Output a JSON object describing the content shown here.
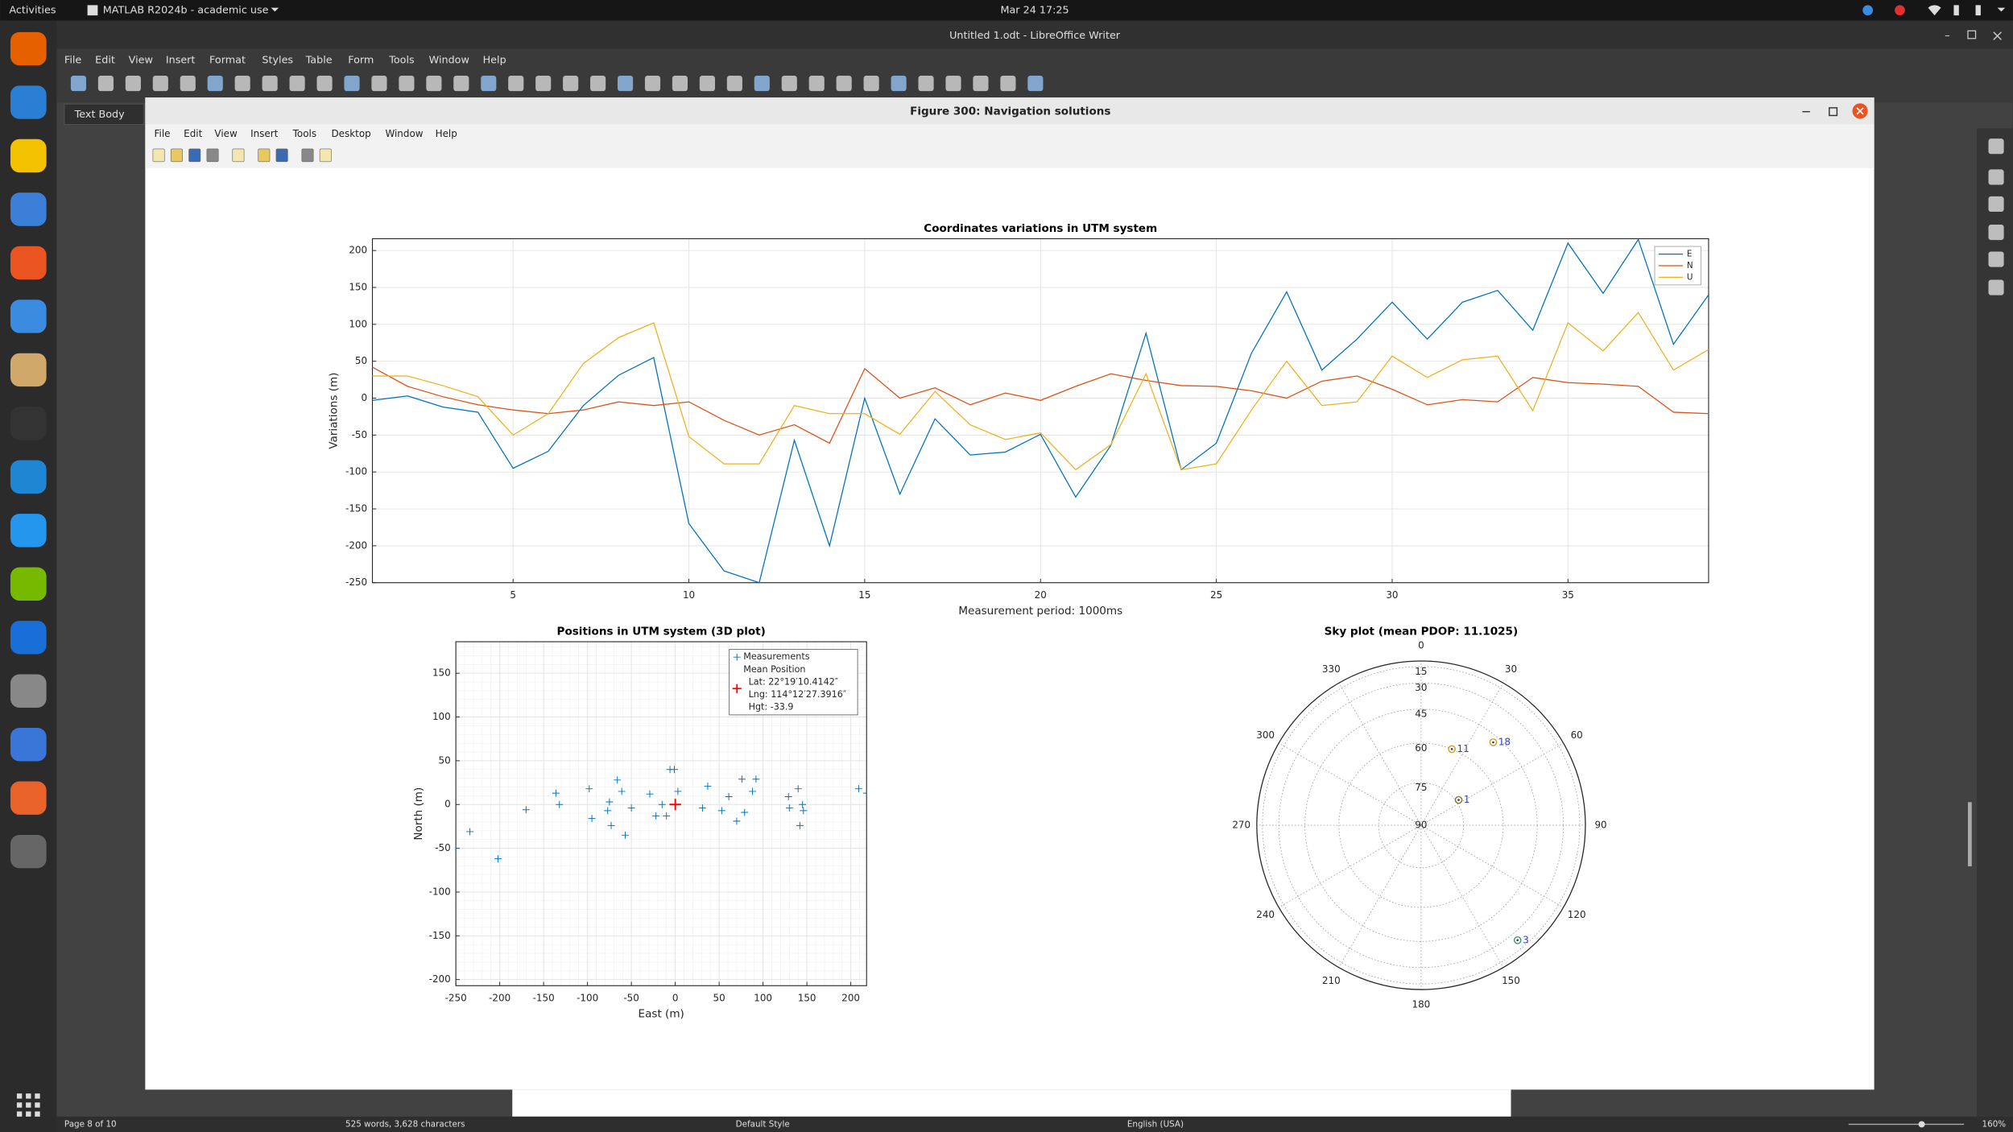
{
  "topbar": {
    "activities": "Activities",
    "app": "MATLAB R2024b - academic use",
    "clock": "Mar 24  17:25"
  },
  "writer": {
    "title": "Untitled 1.odt - LibreOffice Writer",
    "menu": [
      "File",
      "Edit",
      "View",
      "Insert",
      "Format",
      "Styles",
      "Table",
      "Form",
      "Tools",
      "Window",
      "Help"
    ],
    "paragraph_style": "Text Body",
    "status": {
      "page": "Page 8 of 10",
      "words": "525 words, 3,628 characters",
      "page_style": "Default Style",
      "language": "English (USA)",
      "zoom": "160%"
    }
  },
  "figure": {
    "title": "Figure 300: Navigation solutions",
    "menu": [
      "File",
      "Edit",
      "View",
      "Insert",
      "Tools",
      "Desktop",
      "Window",
      "Help"
    ]
  },
  "chart_data": [
    {
      "type": "line",
      "title": "Coordinates variations in UTM system",
      "xlabel": "Measurement period: 1000ms",
      "ylabel": "Variations (m)",
      "x": [
        1,
        2,
        3,
        4,
        5,
        6,
        7,
        8,
        9,
        10,
        11,
        12,
        13,
        14,
        15,
        16,
        17,
        18,
        19,
        20,
        21,
        22,
        23,
        24,
        25,
        26,
        27,
        28,
        29,
        30,
        31,
        32,
        33,
        34,
        35,
        36,
        37,
        38,
        39
      ],
      "series": [
        {
          "name": "E",
          "color": "#0072bd",
          "values": [
            -3,
            3,
            -12,
            -19,
            -95,
            -72,
            -10,
            31,
            55,
            -170,
            -234,
            -250,
            -57,
            -200,
            0,
            -130,
            -28,
            -77,
            -73,
            -49,
            -134,
            -64,
            88,
            -97,
            -61,
            61,
            144,
            38,
            80,
            130,
            80,
            130,
            146,
            92,
            210,
            142,
            215,
            73,
            140
          ]
        },
        {
          "name": "N",
          "color": "#d95319",
          "values": [
            42,
            16,
            2,
            -9,
            -16,
            -21,
            -16,
            -5,
            -10,
            -5,
            -30,
            -50,
            -36,
            -61,
            40,
            0,
            14,
            -9,
            7,
            -3,
            16,
            33,
            24,
            17,
            16,
            10,
            0,
            23,
            30,
            12,
            -9,
            -2,
            -5,
            28,
            21,
            19,
            16,
            -19,
            -21
          ]
        },
        {
          "name": "U",
          "color": "#edb120",
          "values": [
            30,
            30,
            17,
            2,
            -50,
            -21,
            47,
            82,
            102,
            -52,
            -89,
            -89,
            -10,
            -21,
            -21,
            -49,
            9,
            -36,
            -56,
            -47,
            -97,
            -63,
            33,
            -97,
            -89,
            -16,
            50,
            -10,
            -5,
            57,
            28,
            52,
            57,
            -17,
            102,
            64,
            116,
            38,
            66
          ]
        }
      ],
      "xlim": [
        1,
        39
      ],
      "ylim": [
        -250,
        216
      ],
      "xticks": [
        5,
        10,
        15,
        20,
        25,
        30,
        35
      ],
      "yticks": [
        -250,
        -200,
        -150,
        -100,
        -50,
        0,
        50,
        100,
        150,
        200
      ],
      "grid": true,
      "legend": "top-right"
    },
    {
      "type": "scatter",
      "title": "Positions in UTM system (3D plot)",
      "xlabel": "East (m)",
      "ylabel": "North (m)",
      "series": [
        {
          "name": "Measurements",
          "color": "#0072bd",
          "marker": "+",
          "x": [
            -250,
            -234,
            -202,
            -170,
            -136,
            -132,
            -98,
            -95,
            -77,
            -75,
            -73,
            -66,
            -61,
            -57,
            -50,
            -29,
            -22,
            -15,
            -10,
            -6,
            -1,
            3,
            31,
            37,
            53,
            61,
            70,
            76,
            79,
            88,
            92,
            129,
            130,
            140,
            142,
            145,
            146,
            209,
            218
          ],
          "values": [
            -50,
            -31,
            -62,
            -6,
            13,
            0,
            18,
            -16,
            -7,
            3,
            -24,
            28,
            15,
            -35,
            -4,
            12,
            -13,
            0,
            -13,
            40,
            40,
            15,
            -4,
            21,
            -7,
            9,
            -19,
            29,
            -9,
            15,
            29,
            9,
            -4,
            18,
            -24,
            0,
            -7,
            18,
            13
          ]
        },
        {
          "name": "Mean Position",
          "color": "#ff0000",
          "marker": "+",
          "x": [
            0
          ],
          "values": [
            0
          ]
        }
      ],
      "legend_notes": [
        "Lat: 22°19′10.4142″",
        "Lng: 114°12′27.3916″",
        "Hgt: -33.9"
      ],
      "xlim": [
        -250,
        218
      ],
      "ylim": [
        -207,
        186
      ],
      "xticks": [
        -250,
        -200,
        -150,
        -100,
        -50,
        0,
        50,
        100,
        150,
        200
      ],
      "yticks": [
        -200,
        -150,
        -100,
        -50,
        0,
        50,
        100,
        150
      ],
      "grid": true,
      "minor_grid": true,
      "legend": "top-right"
    },
    {
      "type": "skyplot",
      "title": "Sky plot (mean PDOP: 11.1025)",
      "categories": [
        "11",
        "18",
        "1",
        "3"
      ],
      "azimuth": [
        22,
        41,
        56,
        140
      ],
      "elevation": [
        60,
        48,
        74,
        24
      ],
      "colors": [
        "#c8a030",
        "#c8a030",
        "#8a7a28",
        "#3a9a78"
      ],
      "label_color": "#3040c0",
      "azimuth_ticks": [
        0,
        30,
        60,
        90,
        120,
        150,
        180,
        210,
        240,
        270,
        300,
        330
      ],
      "elevation_lim": [
        0,
        90
      ],
      "elevation_ticks": [
        15,
        30,
        45,
        60,
        75,
        90
      ]
    }
  ]
}
